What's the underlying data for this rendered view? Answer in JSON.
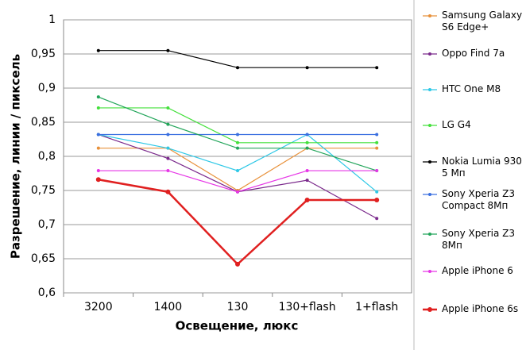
{
  "chart_data": {
    "type": "line",
    "x_label": "Освещение,  люкс",
    "y_label": "Разрешение,  линии / пиксель",
    "categories": [
      "3200",
      "1400",
      "130",
      "130+flash",
      "1+flash"
    ],
    "ylim": [
      0.6,
      1
    ],
    "yticks": [
      {
        "value": 0.6,
        "label": "0,6"
      },
      {
        "value": 0.65,
        "label": "0,65"
      },
      {
        "value": 0.7,
        "label": "0,7"
      },
      {
        "value": 0.75,
        "label": "0,75"
      },
      {
        "value": 0.8,
        "label": "0,8"
      },
      {
        "value": 0.85,
        "label": "0,85"
      },
      {
        "value": 0.9,
        "label": "0,9"
      },
      {
        "value": 0.95,
        "label": "0,95"
      },
      1
    ],
    "grid": true,
    "series": [
      {
        "name": "Samsung Galaxy S6 Edge+",
        "color": "#e8913a",
        "values": [
          0.812,
          0.812,
          0.75,
          0.812,
          0.812
        ]
      },
      {
        "name": "Oppo Find 7a",
        "color": "#7b2a8c",
        "values": [
          0.832,
          0.797,
          0.748,
          0.765,
          0.709
        ]
      },
      {
        "name": "HTC One M8",
        "color": "#2ec8e6",
        "values": [
          0.832,
          0.812,
          0.779,
          0.832,
          0.748
        ]
      },
      {
        "name": "LG G4",
        "color": "#44e03c",
        "values": [
          0.871,
          0.871,
          0.82,
          0.82,
          0.82
        ]
      },
      {
        "name": "Nokia Lumia 930 5 Мп",
        "color": "#000000",
        "values": [
          0.955,
          0.955,
          0.93,
          0.93,
          0.93
        ]
      },
      {
        "name": "Sony Xperia Z3 Compact 8Мп",
        "color": "#3a6fe0",
        "values": [
          0.832,
          0.832,
          0.832,
          0.832,
          0.832
        ]
      },
      {
        "name": "Sony Xperia Z3 8Мп",
        "color": "#22a55a",
        "values": [
          0.887,
          0.847,
          0.812,
          0.812,
          0.779
        ]
      },
      {
        "name": "Apple iPhone 6",
        "color": "#e636e6",
        "values": [
          0.779,
          0.779,
          0.748,
          0.779,
          0.779
        ]
      },
      {
        "name": "Apple iPhone 6s",
        "color": "#e02020",
        "values": [
          0.766,
          0.748,
          0.642,
          0.736,
          0.736
        ]
      }
    ]
  }
}
